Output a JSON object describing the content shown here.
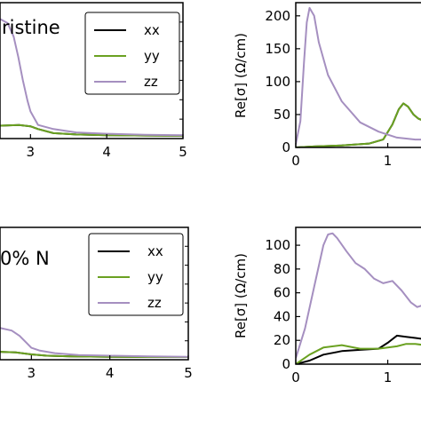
{
  "colors": {
    "xx": "#000000",
    "yy": "#6aa121",
    "zz": "#a58fc0"
  },
  "chart_data": [
    {
      "id": "top-left",
      "type": "line",
      "panel_label": "ristine",
      "xlim": [
        2.6,
        5
      ],
      "ylim": [
        0,
        1
      ],
      "xticks": [
        3,
        4,
        5
      ],
      "xtick_labels": [
        "3",
        "4",
        "5"
      ],
      "legend": {
        "position": "top-right",
        "entries": [
          "xx",
          "yy",
          "zz"
        ]
      },
      "series": [
        {
          "name": "xx",
          "x": [
            2.6,
            2.85,
            3.0,
            3.1,
            3.3,
            3.6,
            4.0,
            4.5,
            5.0
          ],
          "y": [
            0.095,
            0.1,
            0.09,
            0.07,
            0.04,
            0.03,
            0.025,
            0.022,
            0.02
          ]
        },
        {
          "name": "yy",
          "x": [
            2.6,
            2.85,
            3.0,
            3.1,
            3.3,
            3.6,
            4.0,
            4.5,
            5.0
          ],
          "y": [
            0.095,
            0.1,
            0.09,
            0.07,
            0.04,
            0.03,
            0.025,
            0.022,
            0.02
          ]
        },
        {
          "name": "zz",
          "x": [
            2.6,
            2.7,
            2.78,
            2.84,
            2.9,
            2.96,
            3.0,
            3.1,
            3.3,
            3.6,
            4.0,
            4.5,
            5.0
          ],
          "y": [
            0.88,
            0.85,
            0.75,
            0.6,
            0.43,
            0.28,
            0.2,
            0.1,
            0.07,
            0.045,
            0.035,
            0.028,
            0.025
          ]
        }
      ]
    },
    {
      "id": "top-right",
      "type": "line",
      "ylabel": "Re[σ] (Ω/cm)",
      "xlim": [
        0,
        1.4
      ],
      "ylim": [
        0,
        220
      ],
      "xticks": [
        0,
        1
      ],
      "xtick_labels": [
        "0",
        "1"
      ],
      "yticks": [
        0,
        50,
        100,
        150,
        200
      ],
      "ytick_labels": [
        "0",
        "50",
        "100",
        "150",
        "200"
      ],
      "series": [
        {
          "name": "xx",
          "x": [
            0,
            0.2,
            0.5,
            0.8,
            0.95,
            1.05,
            1.12,
            1.17,
            1.22,
            1.28,
            1.33,
            1.4
          ],
          "y": [
            0,
            1.5,
            3,
            6,
            12,
            35,
            58,
            67,
            62,
            50,
            44,
            40
          ]
        },
        {
          "name": "yy",
          "x": [
            0,
            0.2,
            0.5,
            0.8,
            0.95,
            1.05,
            1.12,
            1.17,
            1.22,
            1.28,
            1.33,
            1.4
          ],
          "y": [
            0,
            1.5,
            3,
            6,
            12,
            35,
            58,
            67,
            62,
            50,
            44,
            40
          ]
        },
        {
          "name": "zz",
          "x": [
            0,
            0.05,
            0.09,
            0.12,
            0.15,
            0.2,
            0.25,
            0.35,
            0.5,
            0.7,
            0.9,
            1.1,
            1.3,
            1.4
          ],
          "y": [
            5,
            40,
            130,
            190,
            212,
            200,
            160,
            110,
            70,
            38,
            24,
            15,
            12,
            12
          ]
        }
      ]
    },
    {
      "id": "bottom-left",
      "type": "line",
      "panel_label": "0% N",
      "xlim": [
        2.6,
        5
      ],
      "ylim": [
        0,
        1
      ],
      "xticks": [
        3,
        4,
        5
      ],
      "xtick_labels": [
        "3",
        "4",
        "5"
      ],
      "legend": {
        "position": "top-right",
        "entries": [
          "xx",
          "yy",
          "zz"
        ]
      },
      "series": [
        {
          "name": "xx",
          "x": [
            2.6,
            2.8,
            3.0,
            3.2,
            3.5,
            4.0,
            4.5,
            5.0
          ],
          "y": [
            0.06,
            0.055,
            0.04,
            0.03,
            0.025,
            0.022,
            0.02,
            0.02
          ]
        },
        {
          "name": "yy",
          "x": [
            2.6,
            2.8,
            3.0,
            3.2,
            3.5,
            4.0,
            4.5,
            5.0
          ],
          "y": [
            0.06,
            0.055,
            0.04,
            0.03,
            0.025,
            0.022,
            0.02,
            0.02
          ]
        },
        {
          "name": "zz",
          "x": [
            2.6,
            2.75,
            2.85,
            2.95,
            3.0,
            3.1,
            3.3,
            3.6,
            4.0,
            4.5,
            5.0
          ],
          "y": [
            0.24,
            0.22,
            0.18,
            0.12,
            0.09,
            0.07,
            0.05,
            0.035,
            0.03,
            0.025,
            0.022
          ]
        }
      ]
    },
    {
      "id": "bottom-right",
      "type": "line",
      "ylabel": "Re[σ] (Ω/cm)",
      "xlim": [
        0,
        1.4
      ],
      "ylim": [
        0,
        115
      ],
      "xticks": [
        0,
        1
      ],
      "xtick_labels": [
        "0",
        "1"
      ],
      "yticks": [
        0,
        20,
        40,
        60,
        80,
        100
      ],
      "ytick_labels": [
        "0",
        "20",
        "40",
        "60",
        "80",
        "100"
      ],
      "series": [
        {
          "name": "xx",
          "x": [
            0,
            0.15,
            0.3,
            0.5,
            0.7,
            0.9,
            1.0,
            1.1,
            1.2,
            1.3,
            1.4
          ],
          "y": [
            0,
            3,
            8,
            11,
            12,
            13,
            18,
            24,
            23,
            22,
            21
          ]
        },
        {
          "name": "yy",
          "x": [
            0,
            0.15,
            0.3,
            0.5,
            0.7,
            0.9,
            1.0,
            1.1,
            1.2,
            1.3,
            1.4
          ],
          "y": [
            0,
            8,
            14,
            16,
            13,
            13,
            14,
            15,
            17,
            17,
            16
          ]
        },
        {
          "name": "zz",
          "x": [
            0,
            0.1,
            0.2,
            0.3,
            0.35,
            0.4,
            0.45,
            0.55,
            0.65,
            0.75,
            0.85,
            0.95,
            1.05,
            1.15,
            1.25,
            1.32,
            1.4
          ],
          "y": [
            5,
            30,
            65,
            100,
            109,
            110,
            106,
            95,
            85,
            80,
            72,
            68,
            70,
            62,
            52,
            48,
            50
          ]
        }
      ]
    }
  ]
}
